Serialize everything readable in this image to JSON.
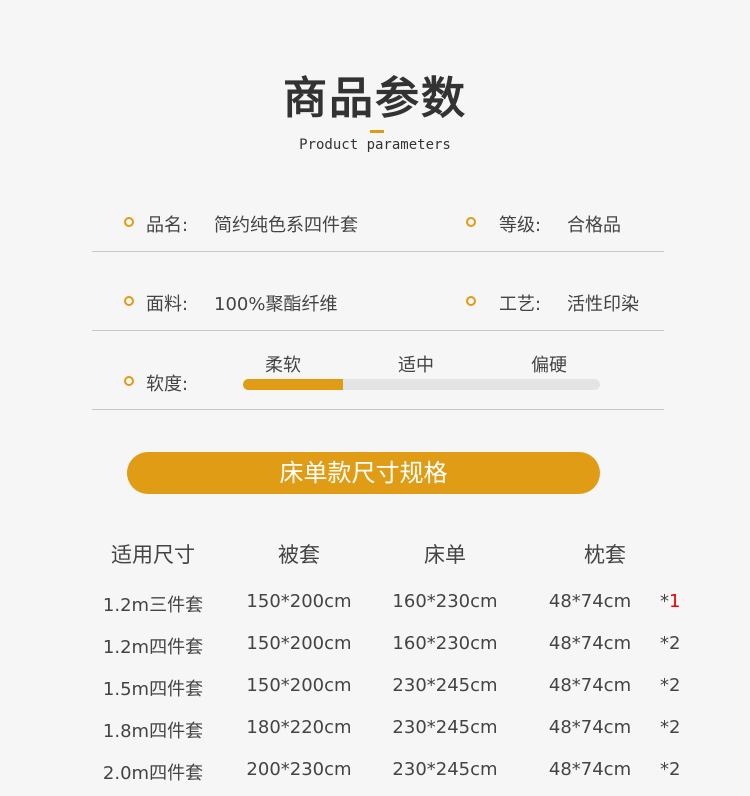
{
  "title": "商品参数",
  "subtitle": "Product parameters",
  "accent": "#e09c14",
  "params": [
    {
      "label": "品名:",
      "value": "简约纯色系四件套"
    },
    {
      "label": "等级:",
      "value": "合格品"
    },
    {
      "label": "面料:",
      "value": "100%聚酯纤维"
    },
    {
      "label": "工艺:",
      "value": "活性印染"
    }
  ],
  "softness": {
    "label": "软度:",
    "levels": [
      "柔软",
      "适中",
      "偏硬"
    ],
    "fill_percent": 28
  },
  "banner": "床单款尺寸规格",
  "table": {
    "headers": [
      "适用尺寸",
      "被套",
      "床单",
      "枕套"
    ],
    "rows": [
      [
        "1.2m三件套",
        "150*200cm",
        "160*230cm",
        "48*74cm",
        "*",
        "1"
      ],
      [
        "1.2m四件套",
        "150*200cm",
        "160*230cm",
        "48*74cm",
        "*",
        "2"
      ],
      [
        "1.5m四件套",
        "150*200cm",
        "230*245cm",
        "48*74cm",
        "*",
        "2"
      ],
      [
        "1.8m四件套",
        "180*220cm",
        "230*245cm",
        "48*74cm",
        "*",
        "2"
      ],
      [
        "2.0m四件套",
        "200*230cm",
        "230*245cm",
        "48*74cm",
        "*",
        "2"
      ]
    ]
  }
}
